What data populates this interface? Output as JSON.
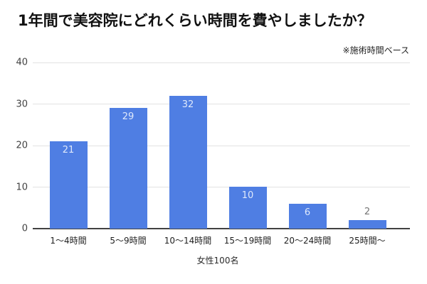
{
  "header": {
    "title": "1年間で美容院にどれくらい時間を費やしましたか？",
    "footnote": "※施術時間ベース"
  },
  "chart_data": {
    "type": "bar",
    "title": "1年間で美容院にどれくらい時間を費やしましたか？",
    "subtitle": "※施術時間ベース",
    "categories": [
      "1～4時間",
      "5～9時間",
      "10～14時間",
      "15～19時間",
      "20～24時間",
      "25時間～"
    ],
    "values": [
      21,
      29,
      32,
      10,
      6,
      2
    ],
    "xlabel": "女性100名",
    "ylabel": "",
    "ylim": [
      0,
      40
    ],
    "yticks": [
      0,
      10,
      20,
      30,
      40
    ],
    "grid": true,
    "legend": "none",
    "colors": {
      "bar": "#4f7ee3",
      "label_inside": "#dfe9fb",
      "label_outside": "#757575",
      "gridline": "#e2e2e2",
      "axis_line": "#424242",
      "y_tick_text": "#424242",
      "x_tick_text": "#1f1f1f",
      "title_text": "#111111",
      "axis_title_text": "#2b2b2b"
    }
  }
}
